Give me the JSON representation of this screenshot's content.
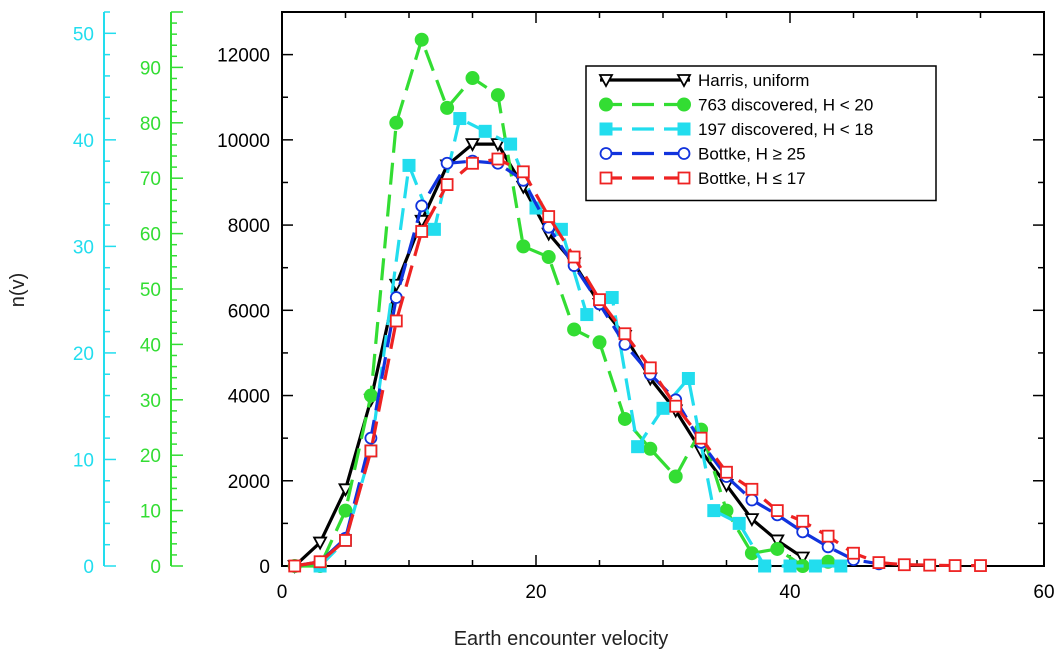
{
  "chart_data": {
    "type": "line",
    "title": "",
    "xlabel": "Earth encounter velocity",
    "ylabel": "n(v)",
    "xlim": [
      0,
      60
    ],
    "ylim": [
      0,
      13000
    ],
    "x_ticks": [
      0,
      20,
      40,
      60
    ],
    "x_tick_labels": [
      "0",
      "20",
      "40",
      "60"
    ],
    "y_ticks": [
      0,
      2000,
      4000,
      6000,
      8000,
      10000,
      12000
    ],
    "y_tick_labels": [
      "0",
      "2000",
      "4000",
      "6000",
      "8000",
      "10000",
      "12000"
    ],
    "grid": false,
    "legend_position": "top-right",
    "secondary_axes": [
      {
        "name": "green-axis",
        "color": "#33dd33",
        "range": [
          0,
          100
        ],
        "ticks": [
          0,
          10,
          20,
          30,
          40,
          50,
          60,
          70,
          80,
          90
        ],
        "tick_labels": [
          "0",
          "10",
          "20",
          "30",
          "40",
          "50",
          "60",
          "70",
          "80",
          "90"
        ]
      },
      {
        "name": "cyan-axis",
        "color": "#22ddee",
        "range": [
          0,
          52
        ],
        "ticks": [
          0,
          10,
          20,
          30,
          40,
          50
        ],
        "tick_labels": [
          "0",
          "10",
          "20",
          "30",
          "40",
          "50"
        ]
      }
    ],
    "series": [
      {
        "name": "Harris, uniform",
        "color": "#000000",
        "marker": "triangle-down",
        "dashed": false,
        "x": [
          1,
          3,
          5,
          7,
          9,
          11,
          13,
          15,
          17,
          19,
          21,
          23,
          25,
          27,
          29,
          31,
          33,
          35,
          37,
          39,
          41
        ],
        "y": [
          0,
          550,
          1800,
          3900,
          6600,
          8100,
          9400,
          9900,
          9900,
          8900,
          7800,
          7100,
          6150,
          5400,
          4400,
          3650,
          2700,
          1900,
          1100,
          600,
          200
        ]
      },
      {
        "name": "763 discovered, H < 20",
        "color": "#33dd33",
        "marker": "circle-filled",
        "dashed": true,
        "x": [
          1,
          3,
          5,
          7,
          9,
          11,
          13,
          15,
          17,
          19,
          21,
          23,
          25,
          27,
          29,
          31,
          33,
          35,
          37,
          39,
          41,
          43
        ],
        "y": [
          0,
          0,
          1300,
          4000,
          10400,
          12350,
          10750,
          11450,
          11050,
          7500,
          7250,
          5550,
          5250,
          3450,
          2750,
          2100,
          3200,
          1300,
          300,
          400,
          0,
          100
        ]
      },
      {
        "name": "197 discovered, H < 18",
        "color": "#22ddee",
        "marker": "square-filled",
        "dashed": true,
        "x": [
          3,
          5,
          7,
          10,
          12,
          14,
          16,
          18,
          20,
          22,
          24,
          26,
          28,
          30,
          32,
          34,
          36,
          38,
          40,
          42,
          44
        ],
        "y": [
          0,
          600,
          2700,
          9400,
          7900,
          10500,
          10200,
          9900,
          8400,
          7900,
          5900,
          6300,
          2800,
          3700,
          4400,
          1300,
          1000,
          0,
          0,
          0,
          0
        ]
      },
      {
        "name": "Bottke, H ≥ 25",
        "color": "#1133dd",
        "marker": "circle-open",
        "dashed": true,
        "x": [
          1,
          3,
          5,
          7,
          9,
          11,
          13,
          15,
          17,
          19,
          21,
          23,
          25,
          27,
          29,
          31,
          33,
          35,
          37,
          39,
          41,
          43,
          45,
          47
        ],
        "y": [
          0,
          100,
          650,
          3000,
          6300,
          8450,
          9450,
          9500,
          9450,
          9050,
          7950,
          7050,
          6150,
          5200,
          4500,
          3900,
          2900,
          2100,
          1550,
          1200,
          800,
          450,
          150,
          50
        ]
      },
      {
        "name": "Bottke, H ≤ 17",
        "color": "#ee2222",
        "marker": "square-open",
        "dashed": true,
        "x": [
          1,
          3,
          5,
          7,
          9,
          11,
          13,
          15,
          17,
          19,
          21,
          23,
          25,
          27,
          29,
          31,
          33,
          35,
          37,
          39,
          41,
          43,
          45,
          47,
          49,
          51,
          53,
          55
        ],
        "y": [
          0,
          100,
          600,
          2700,
          5750,
          7850,
          8950,
          9450,
          9550,
          9250,
          8200,
          7250,
          6250,
          5450,
          4650,
          3750,
          3000,
          2200,
          1800,
          1300,
          1050,
          700,
          300,
          80,
          30,
          20,
          10,
          10
        ]
      }
    ]
  }
}
